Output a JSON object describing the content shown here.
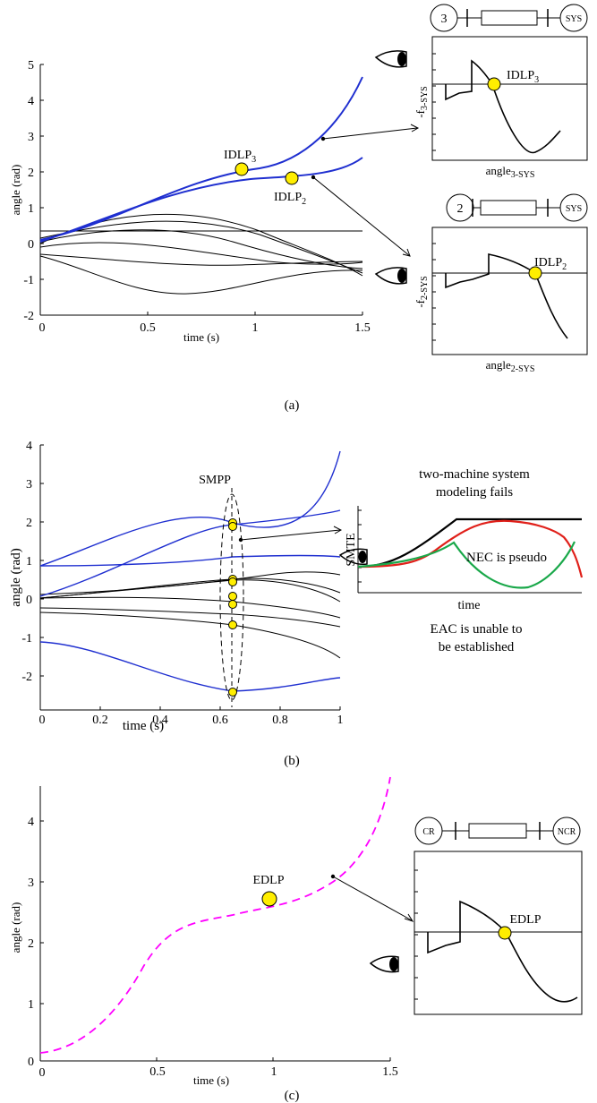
{
  "panel_a": {
    "caption": "(a)",
    "xlabel": "time (s)",
    "ylabel": "angle (rad)",
    "xticks": [
      "0",
      "0.5",
      "1",
      "1.5"
    ],
    "yticks": [
      "5",
      "4",
      "3",
      "2",
      "1",
      "0",
      "-1",
      "-2"
    ],
    "point_upper": {
      "name": "IDLP",
      "sub": "3"
    },
    "point_lower": {
      "name": "IDLP",
      "sub": "2"
    },
    "inset_top": {
      "left_node": "3",
      "right_node": "SYS",
      "ylabel_main": "-f",
      "ylabel_sub": "3-SYS",
      "xlabel_main": "angle",
      "xlabel_sub": "3-SYS",
      "point_name": "IDLP",
      "point_sub": "3"
    },
    "inset_bottom": {
      "left_node": "2",
      "right_node": "SYS",
      "ylabel_main": "-f",
      "ylabel_sub": "2-SYS",
      "xlabel_main": "angle",
      "xlabel_sub": "2-SYS",
      "point_name": "IDLP",
      "point_sub": "2"
    }
  },
  "panel_b": {
    "caption": "(b)",
    "xlabel": "time (s)",
    "ylabel": "angle (rad)",
    "xticks": [
      "0",
      "0.2",
      "0.4",
      "0.6",
      "0.8",
      "1"
    ],
    "yticks": [
      "4",
      "3",
      "2",
      "1",
      "0",
      "-1",
      "-2"
    ],
    "smpp_label": "SMPP",
    "title_line1": "two-machine system",
    "title_line2": "modeling fails",
    "inset_ylabel": "SMTE",
    "inset_xlabel": "time",
    "nec_label": "NEC is pseudo",
    "eac_line1": "EAC is unable to",
    "eac_line2": "be established"
  },
  "panel_c": {
    "caption": "(c)",
    "xlabel": "time (s)",
    "ylabel": "angle (rad)",
    "xticks": [
      "0",
      "0.5",
      "1",
      "1.5"
    ],
    "yticks": [
      "4",
      "3",
      "2",
      "1",
      "0"
    ],
    "point_label": "EDLP",
    "inset": {
      "left_node": "CR",
      "right_node": "NCR",
      "point_label": "EDLP"
    }
  },
  "colors": {
    "blue": "#1f2fd0",
    "black": "#000000",
    "magenta": "#ff00ff",
    "yellow": "#ffee00",
    "red": "#e0201a",
    "green": "#1aa84a"
  }
}
